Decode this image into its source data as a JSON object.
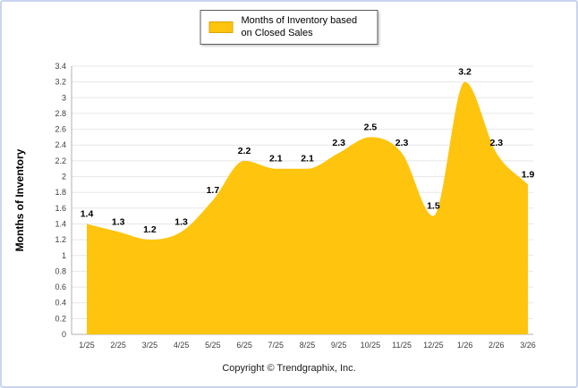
{
  "legend": {
    "label": "Months of Inventory based on Closed Sales",
    "swatch_color": "#FFC40D"
  },
  "footer": {
    "copyright": "Copyright © Trendgraphix, Inc."
  },
  "chart_data": {
    "type": "area",
    "title": "",
    "xlabel": "",
    "ylabel": "Months of Inventory",
    "series_name": "Months of Inventory based on Closed Sales",
    "categories": [
      "1/25",
      "2/25",
      "3/25",
      "4/25",
      "5/25",
      "6/25",
      "7/25",
      "8/25",
      "9/25",
      "10/25",
      "11/25",
      "12/25",
      "1/26",
      "2/26",
      "3/26"
    ],
    "values": [
      1.4,
      1.3,
      1.2,
      1.3,
      1.7,
      2.2,
      2.1,
      2.1,
      2.3,
      2.5,
      2.3,
      1.5,
      3.2,
      2.3,
      1.9
    ],
    "ylim": [
      0,
      3.4
    ],
    "ytick_step": 0.2,
    "grid": true,
    "legend_position": "top",
    "fill_color": "#FFC40D",
    "grid_color": "#e7e7e7",
    "axis_color": "#b0b0b0",
    "label_color": "#000000"
  }
}
